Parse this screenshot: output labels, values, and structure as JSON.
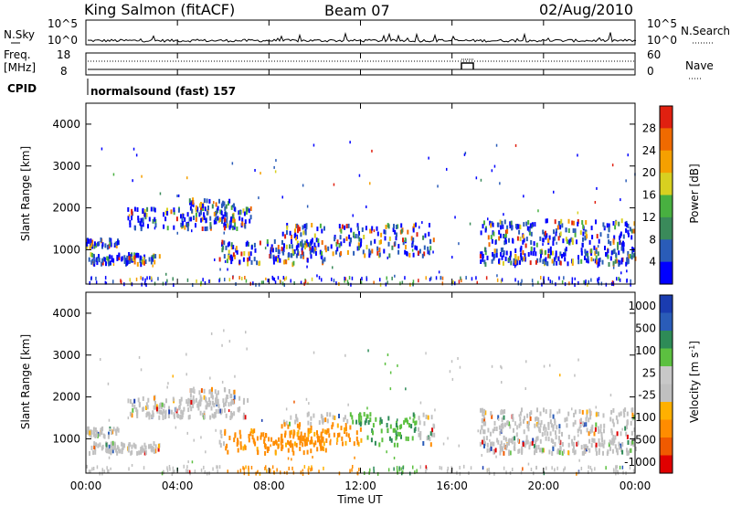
{
  "header": {
    "station": "King Salmon (fitACF)",
    "beam": "Beam 07",
    "date": "02/Aug/2010"
  },
  "sky_panel": {
    "left_label": "N.Sky",
    "right_label": "N.Search",
    "left_ticks": [
      "10^5",
      "10^0"
    ],
    "right_ticks": [
      "10^5",
      "10^0"
    ]
  },
  "freq_panel": {
    "left_label_line1": "Freq.",
    "left_label_line2": "[MHz]",
    "right_label": "Nave",
    "left_ticks": [
      "18",
      "8"
    ],
    "right_ticks": [
      "60",
      "0"
    ]
  },
  "cpid": {
    "label": "CPID",
    "program": "normalsound (fast) 157"
  },
  "colors": {
    "power": [
      "#0000ff",
      "#2a5cb8",
      "#3a8a5a",
      "#48b040",
      "#d8d020",
      "#f5a000",
      "#f06a00",
      "#e02010"
    ],
    "velocity": [
      "#e00000",
      "#f05a00",
      "#ff8c00",
      "#ffb000",
      "#c0c0c0",
      "#c8c8c8",
      "#5cc040",
      "#2e8b57",
      "#2a5cb8",
      "#1a3cb0"
    ]
  },
  "chart_data": [
    {
      "type": "heatmap",
      "panel": "power",
      "ylabel": "Slant Range [km]",
      "yticks": [
        "1000",
        "2000",
        "3000",
        "4000"
      ],
      "ylim": [
        180,
        4500
      ],
      "xlim_hours": [
        0,
        24
      ],
      "colorbar_label": "Power [dB]",
      "colorbar_ticks": [
        "4",
        "8",
        "12",
        "16",
        "20",
        "24",
        "28"
      ]
    },
    {
      "type": "heatmap",
      "panel": "velocity",
      "ylabel": "Slant Range [km]",
      "yticks": [
        "1000",
        "2000",
        "3000",
        "4000"
      ],
      "ylim": [
        180,
        4500
      ],
      "xlim_hours": [
        0,
        24
      ],
      "colorbar_label": "Velocity [m s",
      "colorbar_label_sup": "-1",
      "colorbar_label_end": "]",
      "colorbar_ticks": [
        "1000",
        "500",
        "100",
        "25",
        "-25",
        "-100",
        "-500",
        "-1000"
      ]
    }
  ],
  "xaxis": {
    "label": "Time UT",
    "ticks": [
      "00:00",
      "04:00",
      "08:00",
      "12:00",
      "16:00",
      "20:00",
      "00:00"
    ]
  }
}
